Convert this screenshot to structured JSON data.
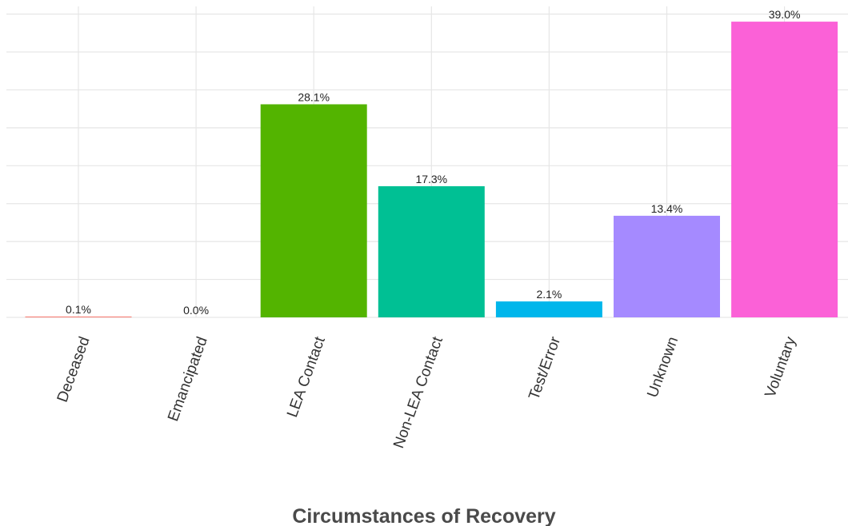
{
  "chart_data": {
    "type": "bar",
    "xlabel": "Circumstances of Recovery",
    "ylabel": "",
    "ylim": [
      0,
      41
    ],
    "grid": true,
    "legend": "none",
    "categories": [
      "Deceased",
      "Emancipated",
      "LEA Contact",
      "Non-LEA Contact",
      "Test/Error",
      "Unknown",
      "Voluntary"
    ],
    "values": [
      0.1,
      0.0,
      28.1,
      17.3,
      2.1,
      13.4,
      39.0
    ],
    "data_labels": [
      "0.1%",
      "0.0%",
      "28.1%",
      "17.3%",
      "2.1%",
      "13.4%",
      "39.0%"
    ],
    "colors": [
      "#F8766D",
      "#C49A00",
      "#53B400",
      "#00C094",
      "#00B6EB",
      "#A58AFF",
      "#FB61D7"
    ]
  }
}
